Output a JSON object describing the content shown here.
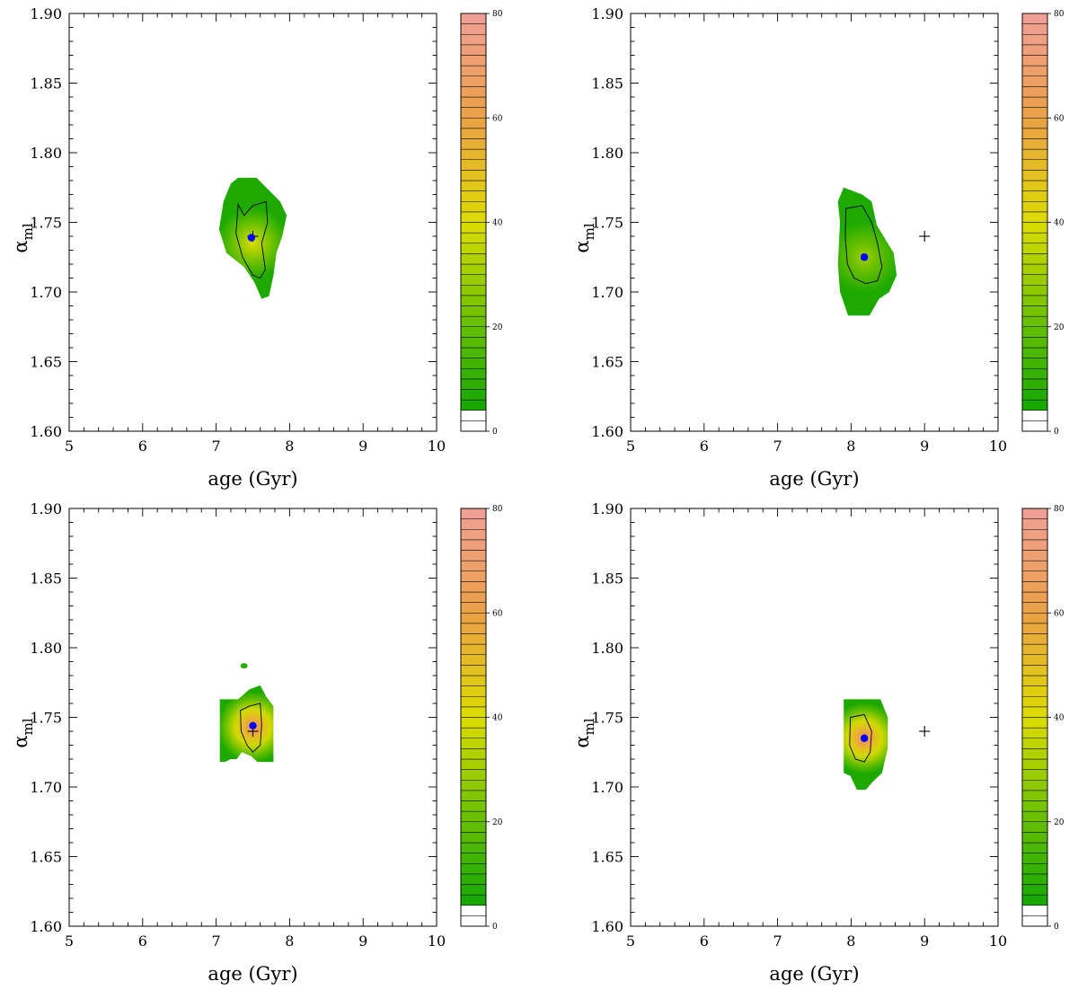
{
  "chart_data": [
    {
      "type": "contour",
      "panel": "top-left",
      "xlabel": "age (Gyr)",
      "ylabel": {
        "symbol": "α",
        "subscript": "ml"
      },
      "xlim": [
        5,
        10
      ],
      "ylim": [
        1.6,
        1.9
      ],
      "xticks": [
        "5",
        "6",
        "7",
        "8",
        "9",
        "10"
      ],
      "yticks": [
        "1.60",
        "1.65",
        "1.70",
        "1.75",
        "1.80",
        "1.85",
        "1.90"
      ],
      "colorbar": {
        "min": 0,
        "max": 80,
        "ticks": [
          "0",
          "20",
          "40",
          "60",
          "80"
        ]
      },
      "peak_value": 40,
      "best_fit": {
        "age": 7.48,
        "alpha": 1.739
      },
      "true_value": {
        "age": 7.5,
        "alpha": 1.74
      },
      "outer_region": [
        [
          7.3,
          1.782
        ],
        [
          7.55,
          1.782
        ],
        [
          7.72,
          1.773
        ],
        [
          7.87,
          1.765
        ],
        [
          7.96,
          1.755
        ],
        [
          7.9,
          1.74
        ],
        [
          7.82,
          1.728
        ],
        [
          7.78,
          1.712
        ],
        [
          7.72,
          1.697
        ],
        [
          7.62,
          1.695
        ],
        [
          7.52,
          1.707
        ],
        [
          7.38,
          1.718
        ],
        [
          7.14,
          1.728
        ],
        [
          7.04,
          1.745
        ],
        [
          7.1,
          1.765
        ],
        [
          7.2,
          1.778
        ]
      ],
      "inner_contour": [
        [
          7.3,
          1.763
        ],
        [
          7.38,
          1.755
        ],
        [
          7.5,
          1.762
        ],
        [
          7.68,
          1.765
        ],
        [
          7.7,
          1.75
        ],
        [
          7.62,
          1.735
        ],
        [
          7.67,
          1.716
        ],
        [
          7.6,
          1.71
        ],
        [
          7.5,
          1.712
        ],
        [
          7.36,
          1.725
        ],
        [
          7.27,
          1.742
        ]
      ],
      "peak_region": {
        "age": 7.5,
        "alpha": 1.735
      }
    },
    {
      "type": "contour",
      "panel": "top-right",
      "xlabel": "age (Gyr)",
      "ylabel": {
        "symbol": "α",
        "subscript": "ml"
      },
      "xlim": [
        5,
        10
      ],
      "ylim": [
        1.6,
        1.9
      ],
      "xticks": [
        "5",
        "6",
        "7",
        "8",
        "9",
        "10"
      ],
      "yticks": [
        "1.60",
        "1.65",
        "1.70",
        "1.75",
        "1.80",
        "1.85",
        "1.90"
      ],
      "colorbar": {
        "min": 0,
        "max": 80,
        "ticks": [
          "0",
          "20",
          "40",
          "60",
          "80"
        ]
      },
      "peak_value": 30,
      "best_fit": {
        "age": 8.18,
        "alpha": 1.725
      },
      "true_value": {
        "age": 9.0,
        "alpha": 1.74
      },
      "outer_region": [
        [
          7.9,
          1.775
        ],
        [
          8.15,
          1.77
        ],
        [
          8.28,
          1.765
        ],
        [
          8.35,
          1.748
        ],
        [
          8.58,
          1.728
        ],
        [
          8.62,
          1.712
        ],
        [
          8.52,
          1.7
        ],
        [
          8.38,
          1.695
        ],
        [
          8.25,
          1.683
        ],
        [
          7.96,
          1.683
        ],
        [
          7.85,
          1.7
        ],
        [
          7.82,
          1.72
        ],
        [
          7.85,
          1.75
        ],
        [
          7.82,
          1.765
        ]
      ],
      "inner_contour": [
        [
          7.93,
          1.76
        ],
        [
          8.15,
          1.762
        ],
        [
          8.28,
          1.75
        ],
        [
          8.36,
          1.735
        ],
        [
          8.42,
          1.718
        ],
        [
          8.36,
          1.708
        ],
        [
          8.2,
          1.706
        ],
        [
          8.04,
          1.71
        ],
        [
          7.95,
          1.72
        ],
        [
          7.92,
          1.74
        ]
      ],
      "peak_region": {
        "age": 8.18,
        "alpha": 1.725
      }
    },
    {
      "type": "contour",
      "panel": "bottom-left",
      "xlabel": "age (Gyr)",
      "ylabel": {
        "symbol": "α",
        "subscript": "ml"
      },
      "xlim": [
        5,
        10
      ],
      "ylim": [
        1.6,
        1.9
      ],
      "xticks": [
        "5",
        "6",
        "7",
        "8",
        "9",
        "10"
      ],
      "yticks": [
        "1.60",
        "1.65",
        "1.70",
        "1.75",
        "1.80",
        "1.85",
        "1.90"
      ],
      "colorbar": {
        "min": 0,
        "max": 80,
        "ticks": [
          "0",
          "20",
          "40",
          "60",
          "80"
        ]
      },
      "peak_value": 70,
      "best_fit": {
        "age": 7.5,
        "alpha": 1.744
      },
      "true_value": {
        "age": 7.5,
        "alpha": 1.74
      },
      "outer_region": [
        [
          7.05,
          1.763
        ],
        [
          7.3,
          1.763
        ],
        [
          7.45,
          1.77
        ],
        [
          7.6,
          1.773
        ],
        [
          7.68,
          1.765
        ],
        [
          7.78,
          1.758
        ],
        [
          7.78,
          1.718
        ],
        [
          7.56,
          1.718
        ],
        [
          7.48,
          1.722
        ],
        [
          7.35,
          1.725
        ],
        [
          7.28,
          1.72
        ],
        [
          7.2,
          1.72
        ],
        [
          7.12,
          1.718
        ],
        [
          7.05,
          1.718
        ]
      ],
      "islands": [
        {
          "age": 7.38,
          "alpha": 1.787
        }
      ],
      "inner_contour": [
        [
          7.33,
          1.755
        ],
        [
          7.45,
          1.758
        ],
        [
          7.6,
          1.76
        ],
        [
          7.62,
          1.745
        ],
        [
          7.6,
          1.73
        ],
        [
          7.5,
          1.725
        ],
        [
          7.42,
          1.73
        ],
        [
          7.34,
          1.74
        ]
      ],
      "peak_region": {
        "age": 7.5,
        "alpha": 1.743
      }
    },
    {
      "type": "contour",
      "panel": "bottom-right",
      "xlabel": "age (Gyr)",
      "ylabel": {
        "symbol": "α",
        "subscript": "ml"
      },
      "xlim": [
        5,
        10
      ],
      "ylim": [
        1.6,
        1.9
      ],
      "xticks": [
        "5",
        "6",
        "7",
        "8",
        "9",
        "10"
      ],
      "yticks": [
        "1.60",
        "1.65",
        "1.70",
        "1.75",
        "1.80",
        "1.85",
        "1.90"
      ],
      "colorbar": {
        "min": 0,
        "max": 80,
        "ticks": [
          "0",
          "20",
          "40",
          "60",
          "80"
        ]
      },
      "peak_value": 70,
      "best_fit": {
        "age": 8.18,
        "alpha": 1.735
      },
      "true_value": {
        "age": 9.0,
        "alpha": 1.74
      },
      "outer_region": [
        [
          7.9,
          1.763
        ],
        [
          8.25,
          1.763
        ],
        [
          8.4,
          1.763
        ],
        [
          8.5,
          1.75
        ],
        [
          8.5,
          1.728
        ],
        [
          8.42,
          1.71
        ],
        [
          8.3,
          1.704
        ],
        [
          8.2,
          1.698
        ],
        [
          8.08,
          1.698
        ],
        [
          7.99,
          1.708
        ],
        [
          7.9,
          1.71
        ],
        [
          7.9,
          1.735
        ]
      ],
      "inner_contour": [
        [
          7.99,
          1.75
        ],
        [
          8.18,
          1.752
        ],
        [
          8.28,
          1.74
        ],
        [
          8.26,
          1.725
        ],
        [
          8.18,
          1.718
        ],
        [
          8.06,
          1.72
        ],
        [
          7.98,
          1.73
        ]
      ],
      "peak_region": {
        "age": 8.18,
        "alpha": 1.735
      }
    }
  ]
}
